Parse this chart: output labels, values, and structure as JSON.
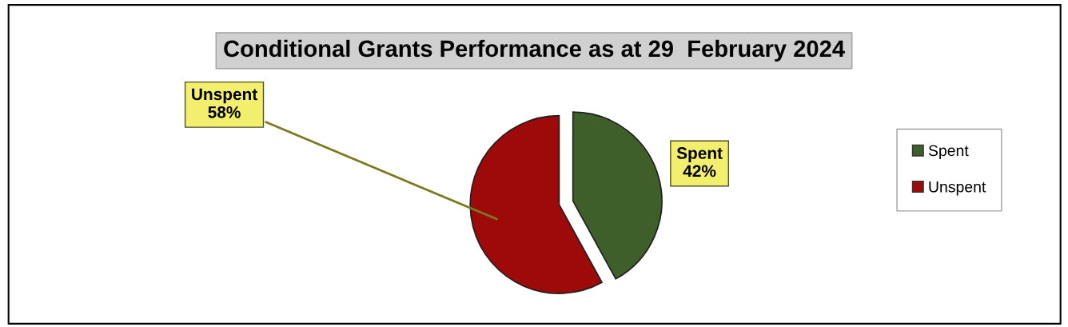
{
  "chart_data": {
    "type": "pie",
    "title": "Conditional Grants Performance as at 29  February 2024",
    "categories": [
      "Spent",
      "Unspent"
    ],
    "values": [
      42,
      58
    ],
    "colors": [
      "#3f5f2a",
      "#9e0a0a"
    ],
    "value_labels": [
      "Spent\n42%",
      "Unspent\n58%"
    ],
    "legend": "right"
  }
}
